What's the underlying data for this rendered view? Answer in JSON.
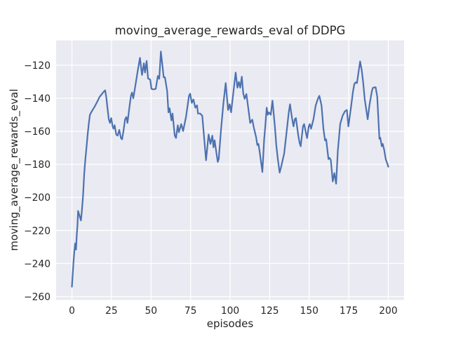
{
  "figure": {
    "background": "#ffffff"
  },
  "chart_data": {
    "type": "line",
    "title": "moving_average_rewards_eval of DDPG",
    "xlabel": "episodes",
    "ylabel": "moving_average_rewards_eval",
    "xlim": [
      -10,
      210
    ],
    "ylim": [
      -262,
      -105
    ],
    "xticks": [
      0,
      25,
      50,
      75,
      100,
      125,
      150,
      175,
      200
    ],
    "yticks": [
      -120,
      -140,
      -160,
      -180,
      -200,
      -220,
      -240,
      -260
    ],
    "grid": true,
    "legend": false,
    "style": {
      "axes_bg": "#eaeaf2",
      "grid_color": "#ffffff",
      "line_color": "#4c72b0",
      "text_color": "#262626"
    },
    "series": [
      {
        "name": "moving_average_rewards_eval",
        "points": [
          [
            0,
            -254
          ],
          [
            0.5,
            -246
          ],
          [
            1,
            -239
          ],
          [
            1.5,
            -233
          ],
          [
            2,
            -227.8
          ],
          [
            2.6,
            -231.5
          ],
          [
            3,
            -223.5
          ],
          [
            3.5,
            -217
          ],
          [
            3.9,
            -208.2
          ],
          [
            5.7,
            -213.9
          ],
          [
            6.3,
            -208
          ],
          [
            7,
            -199.5
          ],
          [
            7.8,
            -185.3
          ],
          [
            8.5,
            -176.8
          ],
          [
            9.2,
            -169.7
          ],
          [
            10,
            -161.2
          ],
          [
            10.7,
            -154.9
          ],
          [
            11.4,
            -149.9
          ],
          [
            13,
            -147.1
          ],
          [
            14.4,
            -145
          ],
          [
            16,
            -142.1
          ],
          [
            17.4,
            -139.3
          ],
          [
            18.9,
            -137.4
          ],
          [
            20.3,
            -135.8
          ],
          [
            21,
            -135.2
          ],
          [
            21.8,
            -140
          ],
          [
            22.6,
            -147.1
          ],
          [
            23.3,
            -152.7
          ],
          [
            24,
            -154.9
          ],
          [
            24.8,
            -152
          ],
          [
            25.7,
            -157
          ],
          [
            26.3,
            -158.4
          ],
          [
            27,
            -156.3
          ],
          [
            28,
            -161.9
          ],
          [
            28.9,
            -162.6
          ],
          [
            29.9,
            -159.1
          ],
          [
            31,
            -164.1
          ],
          [
            31.7,
            -164.8
          ],
          [
            32.6,
            -159.8
          ],
          [
            33.6,
            -152.7
          ],
          [
            34.4,
            -151.3
          ],
          [
            35.1,
            -154.9
          ],
          [
            36.3,
            -145.7
          ],
          [
            37.3,
            -138.6
          ],
          [
            38,
            -136.5
          ],
          [
            38.8,
            -140
          ],
          [
            40,
            -133
          ],
          [
            41.5,
            -124
          ],
          [
            43,
            -115.5
          ],
          [
            44.3,
            -125.9
          ],
          [
            45.5,
            -118.8
          ],
          [
            46.2,
            -124.4
          ],
          [
            47.2,
            -117.4
          ],
          [
            48.1,
            -128
          ],
          [
            49.5,
            -128.6
          ],
          [
            50.3,
            -134.3
          ],
          [
            51.5,
            -134.6
          ],
          [
            53,
            -134.3
          ],
          [
            54.3,
            -126.5
          ],
          [
            55.2,
            -128.2
          ],
          [
            56.2,
            -111.7
          ],
          [
            57.3,
            -120.9
          ],
          [
            58,
            -127.3
          ],
          [
            58.8,
            -127.3
          ],
          [
            60.2,
            -135.8
          ],
          [
            61,
            -148.5
          ],
          [
            61.7,
            -146
          ],
          [
            62.9,
            -153.4
          ],
          [
            63.6,
            -149.2
          ],
          [
            65,
            -162.6
          ],
          [
            65.8,
            -164
          ],
          [
            66.9,
            -156.3
          ],
          [
            67.6,
            -160.5
          ],
          [
            69.1,
            -155.6
          ],
          [
            70.3,
            -159.8
          ],
          [
            72.1,
            -151.3
          ],
          [
            74,
            -138.5
          ],
          [
            74.7,
            -137.2
          ],
          [
            75.8,
            -142.8
          ],
          [
            76.8,
            -140.7
          ],
          [
            78,
            -145.7
          ],
          [
            79.1,
            -144.3
          ],
          [
            79.7,
            -149.2
          ],
          [
            81,
            -149.2
          ],
          [
            82.4,
            -150.6
          ],
          [
            84.8,
            -177.5
          ],
          [
            86.4,
            -161.9
          ],
          [
            87.6,
            -167.6
          ],
          [
            88.8,
            -162.6
          ],
          [
            89.5,
            -169.7
          ],
          [
            90.2,
            -165.4
          ],
          [
            91.5,
            -174
          ],
          [
            92.2,
            -178.5
          ],
          [
            92.8,
            -176.8
          ],
          [
            94.2,
            -159.8
          ],
          [
            95.7,
            -143.6
          ],
          [
            97.2,
            -130.8
          ],
          [
            98.7,
            -147.1
          ],
          [
            99.7,
            -143.6
          ],
          [
            100.6,
            -148.5
          ],
          [
            102,
            -137
          ],
          [
            103.5,
            -124.4
          ],
          [
            104.6,
            -133.6
          ],
          [
            105.5,
            -130.1
          ],
          [
            106.4,
            -133.6
          ],
          [
            107.4,
            -126.9
          ],
          [
            108.3,
            -137
          ],
          [
            109.2,
            -140.3
          ],
          [
            110.3,
            -137.4
          ],
          [
            111.5,
            -146
          ],
          [
            112.7,
            -154.9
          ],
          [
            114,
            -152.9
          ],
          [
            115,
            -157.7
          ],
          [
            116.4,
            -163.4
          ],
          [
            117.2,
            -168.3
          ],
          [
            117.9,
            -167.6
          ],
          [
            118.7,
            -172.6
          ],
          [
            120.4,
            -184.6
          ],
          [
            121.5,
            -165
          ],
          [
            122.3,
            -156
          ],
          [
            123.1,
            -145.7
          ],
          [
            123.8,
            -150
          ],
          [
            124.5,
            -148.5
          ],
          [
            125.7,
            -150
          ],
          [
            126.8,
            -141.4
          ],
          [
            128.3,
            -157
          ],
          [
            129.2,
            -168.3
          ],
          [
            130.2,
            -177
          ],
          [
            131.3,
            -185
          ],
          [
            132.4,
            -181
          ],
          [
            134.2,
            -173.3
          ],
          [
            135.6,
            -161.2
          ],
          [
            137.1,
            -148.5
          ],
          [
            137.9,
            -143.6
          ],
          [
            138.6,
            -148.5
          ],
          [
            139.4,
            -153.4
          ],
          [
            140.1,
            -157
          ],
          [
            140.9,
            -152.7
          ],
          [
            141.6,
            -152
          ],
          [
            143.1,
            -162.6
          ],
          [
            143.9,
            -166.9
          ],
          [
            144.6,
            -169
          ],
          [
            146.1,
            -157
          ],
          [
            146.8,
            -155.6
          ],
          [
            148.3,
            -162.6
          ],
          [
            148.7,
            -164.1
          ],
          [
            149.7,
            -157
          ],
          [
            150.4,
            -155.6
          ],
          [
            151.2,
            -158.4
          ],
          [
            152.7,
            -152.7
          ],
          [
            154.1,
            -144.3
          ],
          [
            155.6,
            -140
          ],
          [
            156.4,
            -138.5
          ],
          [
            157.8,
            -144.3
          ],
          [
            159,
            -158.4
          ],
          [
            160,
            -165.5
          ],
          [
            160.7,
            -164.8
          ],
          [
            162.2,
            -176.8
          ],
          [
            163,
            -176.1
          ],
          [
            163.7,
            -177.5
          ],
          [
            164.9,
            -190.3
          ],
          [
            165.9,
            -185.3
          ],
          [
            167,
            -191.7
          ],
          [
            168.1,
            -172
          ],
          [
            169.6,
            -155.6
          ],
          [
            171.1,
            -150.6
          ],
          [
            172.6,
            -147.8
          ],
          [
            173.8,
            -147.1
          ],
          [
            174.8,
            -157
          ],
          [
            176.3,
            -146.4
          ],
          [
            177.7,
            -135.8
          ],
          [
            178.5,
            -131.5
          ],
          [
            179.3,
            -130.3
          ],
          [
            180.2,
            -130.8
          ],
          [
            181.2,
            -124
          ],
          [
            182.2,
            -117.7
          ],
          [
            183.2,
            -123
          ],
          [
            184.1,
            -130.1
          ],
          [
            185.1,
            -140.7
          ],
          [
            186,
            -146.4
          ],
          [
            187,
            -152.7
          ],
          [
            188.1,
            -144.3
          ],
          [
            189.6,
            -135.8
          ],
          [
            190.3,
            -133.6
          ],
          [
            192,
            -133.3
          ],
          [
            193,
            -139
          ],
          [
            194,
            -157
          ],
          [
            194.4,
            -164.5
          ],
          [
            194.9,
            -163.8
          ],
          [
            195.9,
            -169
          ],
          [
            196.5,
            -167.6
          ],
          [
            197.4,
            -171.2
          ],
          [
            198.4,
            -176.8
          ],
          [
            199.3,
            -179.3
          ],
          [
            200,
            -181.4
          ]
        ]
      }
    ]
  }
}
